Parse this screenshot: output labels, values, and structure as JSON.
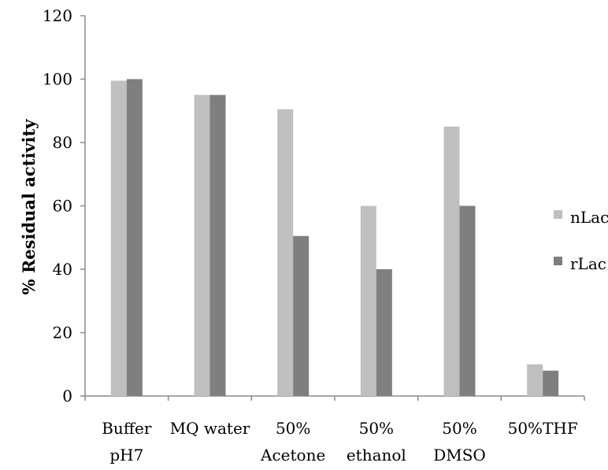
{
  "chart_data": {
    "type": "bar",
    "categories": [
      [
        "Buffer",
        "pH7"
      ],
      [
        "MQ water"
      ],
      [
        "50%",
        "Acetone"
      ],
      [
        "50%",
        "ethanol"
      ],
      [
        "50%",
        "DMSO"
      ],
      [
        "50%THF"
      ]
    ],
    "series": [
      {
        "name": "nLac",
        "color": "#bfbfbf",
        "values": [
          99.5,
          95,
          90.5,
          60,
          85,
          10
        ]
      },
      {
        "name": "rLac",
        "color": "#7f7f7f",
        "values": [
          100,
          95,
          50.5,
          40,
          60,
          8
        ]
      }
    ],
    "ylabel": "% Residual activity",
    "xlabel": "",
    "ylim": [
      0,
      120
    ],
    "yticks": [
      0,
      20,
      40,
      60,
      80,
      100,
      120
    ],
    "grid": false,
    "legend_position": "right"
  }
}
